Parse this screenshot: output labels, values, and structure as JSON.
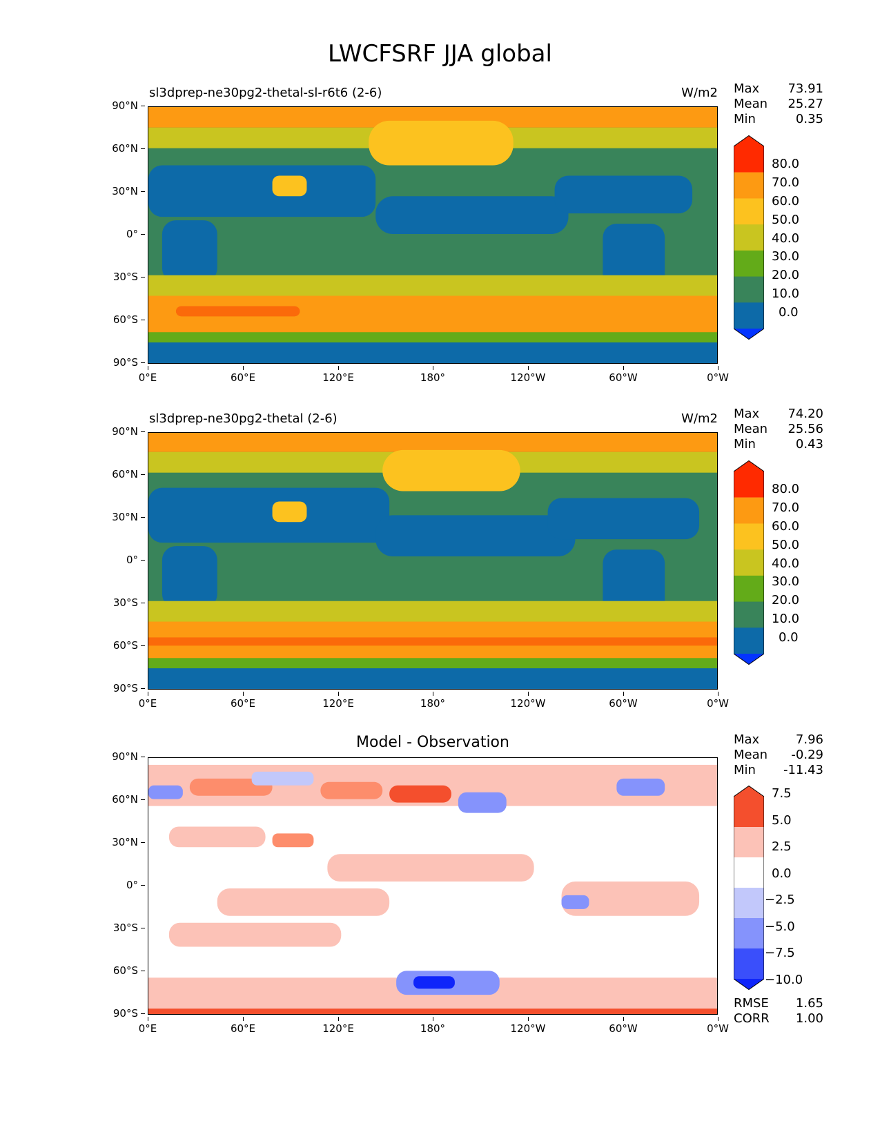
{
  "figure_title": "LWCFSRF JJA global",
  "lat_ticks": [
    "90°N",
    "60°N",
    "30°N",
    "0°",
    "30°S",
    "60°S",
    "90°S"
  ],
  "lon_ticks": [
    "0°E",
    "60°E",
    "120°E",
    "180°",
    "120°W",
    "60°W",
    "0°W"
  ],
  "panels": [
    {
      "title": "sl3dprep-ne30pg2-thetal-sl-r6t6 (2-6)",
      "units": "W/m2",
      "stats": [
        {
          "label": "Max",
          "value": "73.91"
        },
        {
          "label": "Mean",
          "value": "25.27"
        },
        {
          "label": "Min",
          "value": "0.35"
        }
      ],
      "colorbar": {
        "labels": [
          "80.0",
          "70.0",
          "60.0",
          "50.0",
          "40.0",
          "30.0",
          "20.0",
          "10.0",
          "0.0"
        ],
        "colors": [
          "#ff2a00",
          "#fb6a0a",
          "#fd9a12",
          "#fcc21f",
          "#c9c520",
          "#63ab19",
          "#39845a",
          "#0d6aa8",
          "#0434ff"
        ]
      }
    },
    {
      "title": "sl3dprep-ne30pg2-thetal (2-6)",
      "units": "W/m2",
      "stats": [
        {
          "label": "Max",
          "value": "74.20"
        },
        {
          "label": "Mean",
          "value": "25.56"
        },
        {
          "label": "Min",
          "value": "0.43"
        }
      ],
      "colorbar": {
        "labels": [
          "80.0",
          "70.0",
          "60.0",
          "50.0",
          "40.0",
          "30.0",
          "20.0",
          "10.0",
          "0.0"
        ],
        "colors": [
          "#ff2a00",
          "#fb6a0a",
          "#fd9a12",
          "#fcc21f",
          "#c9c520",
          "#63ab19",
          "#39845a",
          "#0d6aa8",
          "#0434ff"
        ]
      }
    },
    {
      "title": "Model - Observation",
      "units": "",
      "stats": [
        {
          "label": "Max",
          "value": "7.96"
        },
        {
          "label": "Mean",
          "value": "-0.29"
        },
        {
          "label": "Min",
          "value": "-11.43"
        }
      ],
      "colorbar": {
        "labels": [
          "7.5",
          "5.0",
          "2.5",
          "0.0",
          "−2.5",
          "−5.0",
          "−7.5",
          "−10.0"
        ],
        "colors": [
          "#f44f2d",
          "#fd8d6c",
          "#fcc2b7",
          "#ffffff",
          "#c2c8fb",
          "#8593fc",
          "#3a4ffb",
          "#0f25fa"
        ]
      },
      "extra_stats": [
        {
          "label": "RMSE",
          "value": "1.65"
        },
        {
          "label": "CORR",
          "value": "1.00"
        }
      ]
    }
  ]
}
